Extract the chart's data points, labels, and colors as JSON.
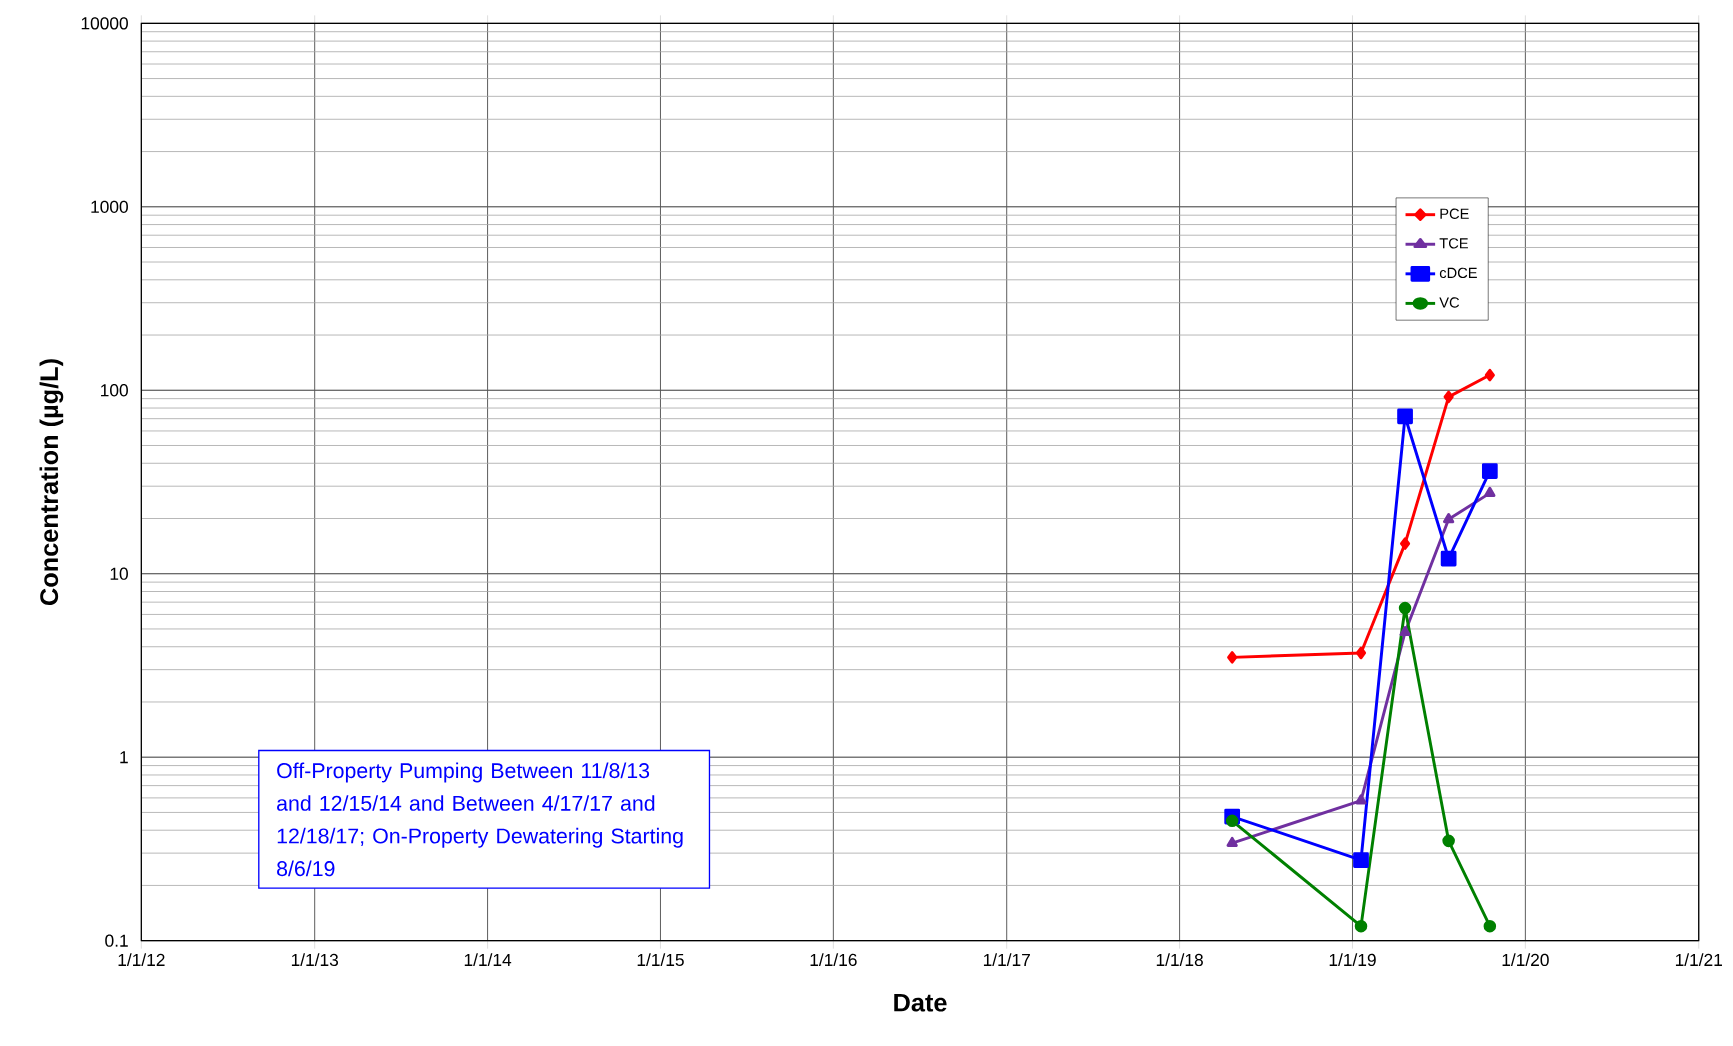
{
  "chart_data": {
    "type": "line",
    "xlabel": "Date",
    "ylabel": "Concentration (µg/L)",
    "x": [
      "2018-04-22",
      "2019-01-19",
      "2019-04-22",
      "2019-07-23",
      "2019-10-18"
    ],
    "series": [
      {
        "name": "PCE",
        "color": "#ff0000",
        "marker": "diamond",
        "values": [
          3.5,
          3.7,
          14.6,
          92,
          121
        ]
      },
      {
        "name": "TCE",
        "color": "#7030a0",
        "marker": "triangle",
        "values": [
          0.34,
          0.58,
          4.8,
          19.8,
          27.5
        ]
      },
      {
        "name": "cDCE",
        "color": "#0000ff",
        "marker": "square",
        "values": [
          0.475,
          0.275,
          72,
          12.1,
          36.3
        ]
      },
      {
        "name": "VC",
        "color": "#008000",
        "marker": "circle",
        "values": [
          0.45,
          0.12,
          6.5,
          0.35,
          0.12
        ]
      }
    ],
    "xlim": [
      "2012-01-01",
      "2021-01-01"
    ],
    "xticks": [
      {
        "value": "2012-01-01",
        "label": "1/1/12"
      },
      {
        "value": "2013-01-01",
        "label": "1/1/13"
      },
      {
        "value": "2014-01-01",
        "label": "1/1/14"
      },
      {
        "value": "2015-01-01",
        "label": "1/1/15"
      },
      {
        "value": "2016-01-01",
        "label": "1/1/16"
      },
      {
        "value": "2017-01-01",
        "label": "1/1/17"
      },
      {
        "value": "2018-01-01",
        "label": "1/1/18"
      },
      {
        "value": "2019-01-01",
        "label": "1/1/19"
      },
      {
        "value": "2020-01-01",
        "label": "1/1/20"
      },
      {
        "value": "2021-01-01",
        "label": "1/1/21"
      }
    ],
    "ylim": [
      0.1,
      10000
    ],
    "yticks": [
      0.1,
      1,
      10,
      100,
      1000,
      10000
    ],
    "log": "y",
    "grid": true,
    "legend": "top right",
    "line_style": "solid",
    "annotations": [
      "Off-Property Pumping Between 11/8/13 and 12/15/14 and Between 4/17/17 and 12/18/17; On-Property Dewatering Starting 8/6/19"
    ]
  }
}
